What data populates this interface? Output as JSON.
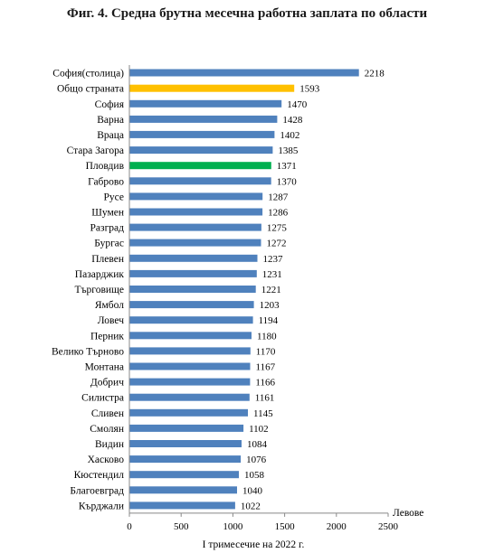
{
  "chart_data": {
    "type": "bar",
    "orientation": "horizontal",
    "title": "Фиг. 4. Средна брутна месечна работна заплата по области",
    "categories": [
      "София(столица)",
      "Общо страната",
      "София",
      "Варна",
      "Враца",
      "Стара Загора",
      "Пловдив",
      "Габрово",
      "Русе",
      "Шумен",
      "Разград",
      "Бургас",
      "Плевен",
      "Пазарджик",
      "Търговище",
      "Ямбол",
      "Ловеч",
      "Перник",
      "Велико Търново",
      "Монтана",
      "Добрич",
      "Силистра",
      "Сливен",
      "Смолян",
      "Видин",
      "Хасково",
      "Кюстендил",
      "Благоевград",
      "Кърджали"
    ],
    "values": [
      2218,
      1593,
      1470,
      1428,
      1402,
      1385,
      1371,
      1370,
      1287,
      1286,
      1275,
      1272,
      1237,
      1231,
      1221,
      1203,
      1194,
      1180,
      1170,
      1167,
      1166,
      1161,
      1145,
      1102,
      1084,
      1076,
      1058,
      1040,
      1022
    ],
    "value_labels": [
      "2218",
      "1593",
      "1470",
      "1428",
      "1402",
      "1385",
      "1371",
      "1370",
      "1287",
      "1286",
      "1275",
      "1272",
      "1237",
      "1231",
      "1221",
      "1203",
      "1194",
      "1180",
      "1170",
      "1167",
      "1166",
      "1161",
      "1145",
      "1102",
      "1084",
      "1076",
      "1058",
      "1040",
      "1022"
    ],
    "xlim": [
      0,
      2500
    ],
    "xticks": [
      "0",
      "500",
      "1000",
      "1500",
      "2000",
      "2500"
    ],
    "xtick_values": [
      0,
      500,
      1000,
      1500,
      2000,
      2500
    ],
    "xlabel": "I тримесечие на 2022  г.",
    "unit_label": "Левове",
    "grid": false,
    "colors": {
      "default": "#4f81bd",
      "highlight_total": "#ffc000",
      "highlight_plovdiv": "#00b050"
    },
    "bar_colors": [
      "default",
      "highlight_total",
      "default",
      "default",
      "default",
      "default",
      "highlight_plovdiv",
      "default",
      "default",
      "default",
      "default",
      "default",
      "default",
      "default",
      "default",
      "default",
      "default",
      "default",
      "default",
      "default",
      "default",
      "default",
      "default",
      "default",
      "default",
      "default",
      "default",
      "default",
      "default"
    ]
  }
}
